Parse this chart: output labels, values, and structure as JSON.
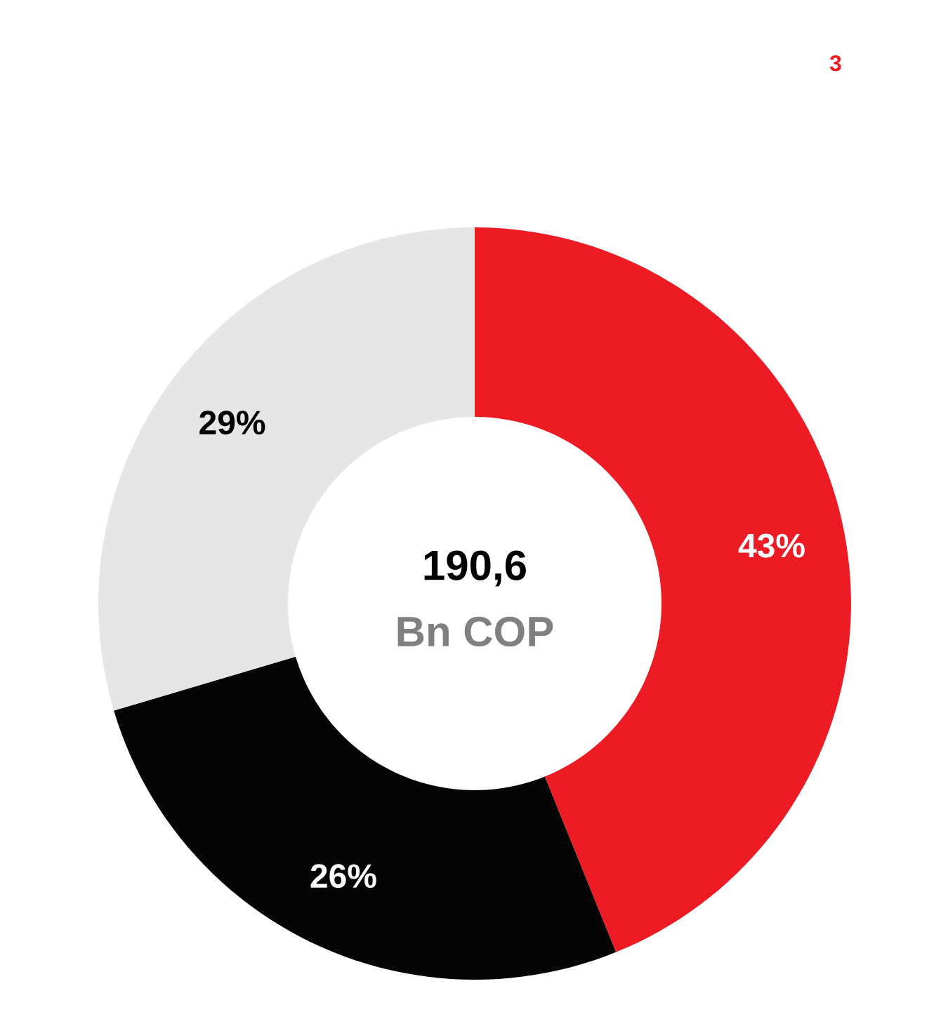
{
  "chart_data": {
    "type": "donut",
    "categories": [
      null,
      null,
      null
    ],
    "values": [
      43,
      26,
      29
    ],
    "colors": [
      "#ed1c24",
      "#050505",
      "#e6e6e6"
    ],
    "value_labels": [
      "43%",
      "26%",
      "29%"
    ],
    "annotations": [
      "190,6",
      "Bn COP",
      "3"
    ]
  }
}
